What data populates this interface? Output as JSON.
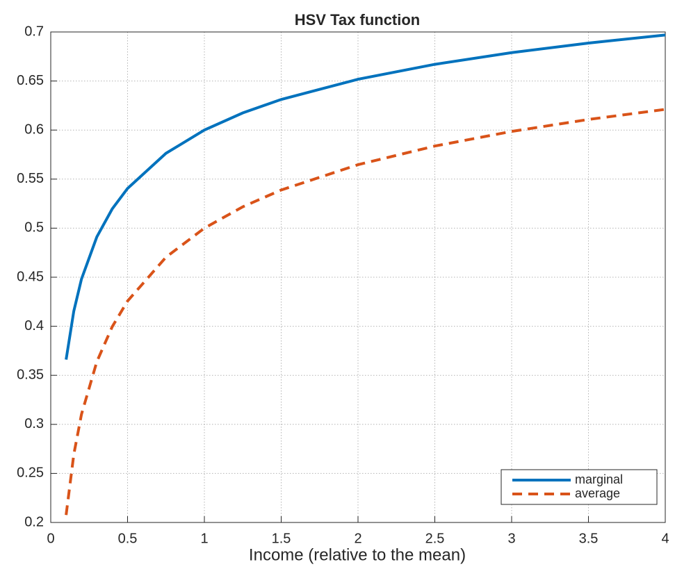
{
  "chart_data": {
    "type": "line",
    "title": "HSV Tax function",
    "x_label": "Income (relative to the mean)",
    "x": [
      0.1,
      0.15,
      0.2,
      0.3,
      0.4,
      0.5,
      0.75,
      1,
      1.25,
      1.5,
      2,
      2.5,
      3,
      3.5,
      4
    ],
    "series": [
      {
        "name": "marginal",
        "color": "#0072bd",
        "line_style": "solid",
        "values": [
          0.366,
          0.4154,
          0.4481,
          0.4911,
          0.5196,
          0.5405,
          0.5763,
          0.6,
          0.6175,
          0.6312,
          0.6518,
          0.667,
          0.6789,
          0.6887,
          0.6969
        ]
      },
      {
        "name": "average",
        "color": "#d95319",
        "line_style": "dashed",
        "values": [
          0.2076,
          0.2693,
          0.3102,
          0.3639,
          0.3995,
          0.4257,
          0.4704,
          0.5,
          0.5218,
          0.5389,
          0.5647,
          0.5837,
          0.5986,
          0.6108,
          0.6211
        ]
      }
    ],
    "xlim": [
      0,
      4
    ],
    "xticks": [
      0,
      0.5,
      1,
      1.5,
      2,
      2.5,
      3,
      3.5,
      4
    ],
    "ylim": [
      0.2,
      0.7
    ],
    "yticks": [
      0.2,
      0.25,
      0.3,
      0.35,
      0.4,
      0.45,
      0.5,
      0.55,
      0.6,
      0.65,
      0.7
    ],
    "grid": true,
    "legend_position": "lower right"
  }
}
